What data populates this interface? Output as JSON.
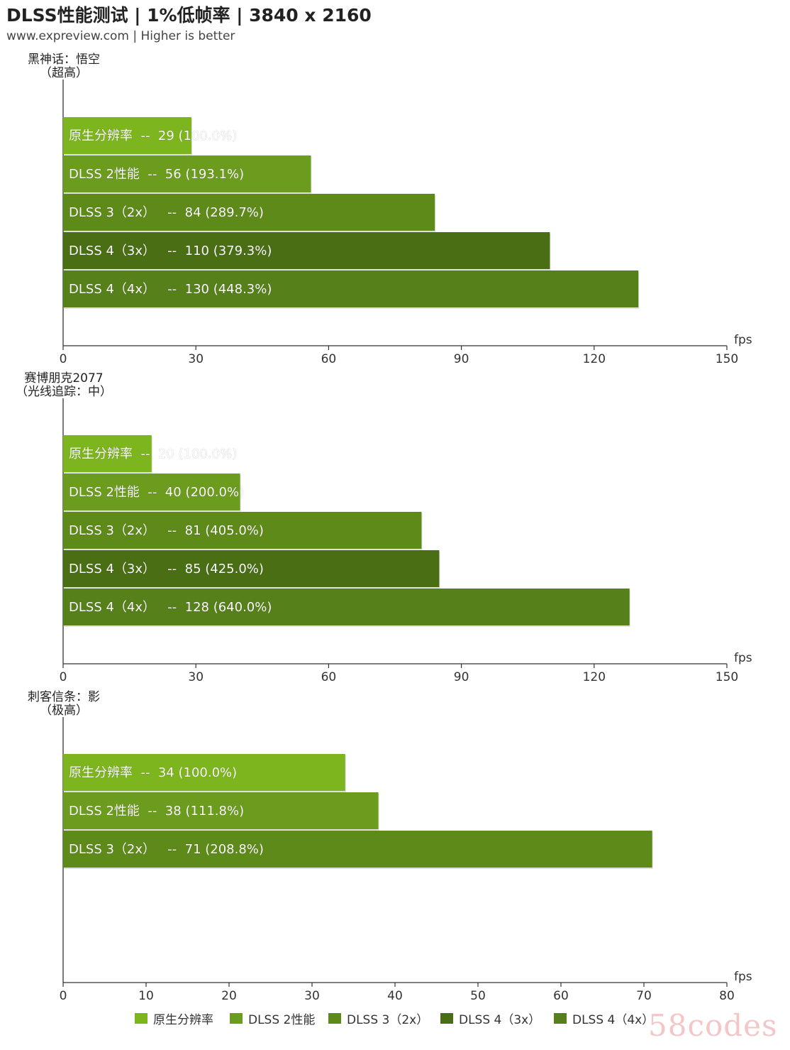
{
  "title": "DLSS性能测试 | 1%低帧率 | 3840 x 2160",
  "subtitle": "www.expreview.com | Higher is better",
  "watermark": "58codes",
  "colors": [
    "#7db51e",
    "#6b9c1e",
    "#5d8a19",
    "#4a6e14",
    "#56801a"
  ],
  "chart_data": [
    {
      "type": "bar",
      "orientation": "horizontal",
      "title_lines": [
        "黑神话：悟空",
        "（超高）"
      ],
      "xunit": "fps",
      "xlim": [
        0,
        150
      ],
      "xticks": [
        "0",
        "30",
        "60",
        "90",
        "120",
        "150"
      ],
      "bars": [
        {
          "label": "原生分辨率  --  29 (100.0%)",
          "value": 29,
          "series": 0
        },
        {
          "label": "DLSS 2性能  --  56 (193.1%)",
          "value": 56,
          "series": 1
        },
        {
          "label": "DLSS 3（2x）   --  84 (289.7%)",
          "value": 84,
          "series": 2
        },
        {
          "label": "DLSS 4（3x）   --  110 (379.3%)",
          "value": 110,
          "series": 3
        },
        {
          "label": "DLSS 4（4x）   --  130 (448.3%)",
          "value": 130,
          "series": 4
        }
      ]
    },
    {
      "type": "bar",
      "orientation": "horizontal",
      "title_lines": [
        "赛博朋克2077",
        "（光线追踪：中）"
      ],
      "xunit": "fps",
      "xlim": [
        0,
        150
      ],
      "xticks": [
        "0",
        "30",
        "60",
        "90",
        "120",
        "150"
      ],
      "bars": [
        {
          "label": "原生分辨率  --  20 (100.0%)",
          "value": 20,
          "series": 0
        },
        {
          "label": "DLSS 2性能  --  40 (200.0%)",
          "value": 40,
          "series": 1
        },
        {
          "label": "DLSS 3（2x）   --  81 (405.0%)",
          "value": 81,
          "series": 2
        },
        {
          "label": "DLSS 4（3x）   --  85 (425.0%)",
          "value": 85,
          "series": 3
        },
        {
          "label": "DLSS 4（4x）   --  128 (640.0%)",
          "value": 128,
          "series": 4
        }
      ]
    },
    {
      "type": "bar",
      "orientation": "horizontal",
      "title_lines": [
        "刺客信条：影",
        "（极高）"
      ],
      "xunit": "fps",
      "xlim": [
        0,
        80
      ],
      "xticks": [
        "0",
        "10",
        "20",
        "30",
        "40",
        "50",
        "60",
        "70",
        "80"
      ],
      "bars": [
        {
          "label": "原生分辨率  --  34 (100.0%)",
          "value": 34,
          "series": 0
        },
        {
          "label": "DLSS 2性能  --  38 (111.8%)",
          "value": 38,
          "series": 1
        },
        {
          "label": "DLSS 3（2x）   --  71 (208.8%)",
          "value": 71,
          "series": 2
        }
      ]
    }
  ],
  "legend": {
    "placement": "bottom",
    "items": [
      {
        "label": "原生分辨率",
        "color": "#7db51e"
      },
      {
        "label": "DLSS 2性能",
        "color": "#6b9c1e"
      },
      {
        "label": "DLSS 3（2x）",
        "color": "#5d8a19"
      },
      {
        "label": "DLSS 4（3x）",
        "color": "#4a6e14"
      },
      {
        "label": "DLSS 4（4x）",
        "color": "#56801a"
      }
    ]
  }
}
